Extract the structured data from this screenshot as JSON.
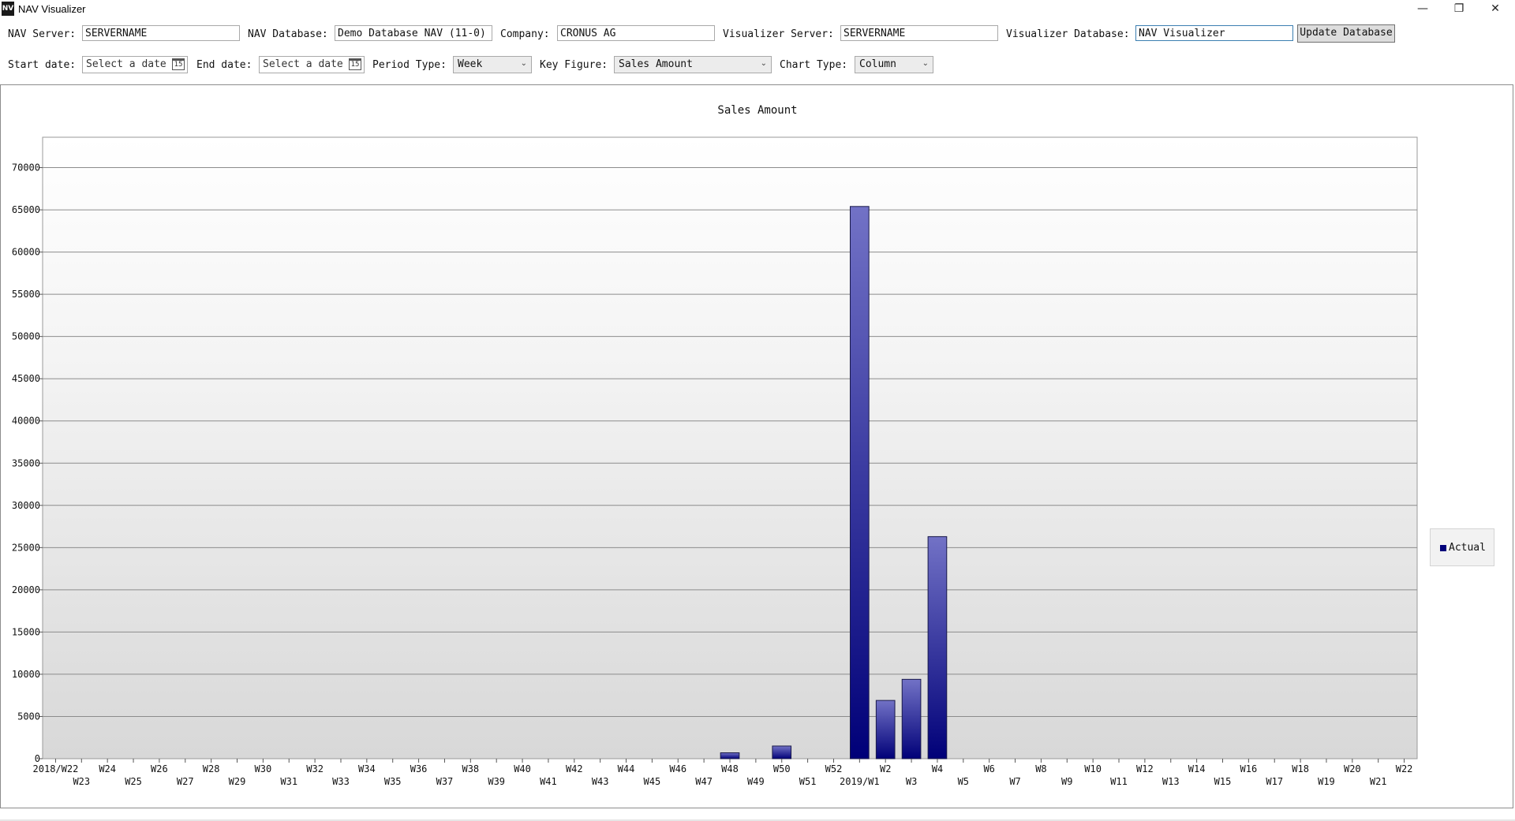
{
  "window": {
    "title": "NAV Visualizer",
    "icon_text": "NV",
    "controls": [
      "minimize-icon",
      "restore-icon",
      "close-icon"
    ],
    "minimize_glyph": "—",
    "restore_glyph": "❐",
    "close_glyph": "✕"
  },
  "connection": {
    "nav_server_label": "NAV Server:",
    "nav_server_value": "SERVERNAME",
    "nav_database_label": "NAV Database:",
    "nav_database_value": "Demo Database NAV (11-0)",
    "company_label": "Company:",
    "company_value": "CRONUS AG",
    "visualizer_server_label": "Visualizer Server:",
    "visualizer_server_value": "SERVERNAME",
    "visualizer_database_label": "Visualizer Database:",
    "visualizer_database_value": "NAV Visualizer",
    "update_button": "Update Database"
  },
  "filters": {
    "start_date_label": "Start date:",
    "start_date_placeholder": "Select a date",
    "end_date_label": "End date:",
    "end_date_placeholder": "Select a date",
    "calendar_glyph": "15",
    "period_type_label": "Period Type:",
    "period_type_value": "Week",
    "key_figure_label": "Key Figure:",
    "key_figure_value": "Sales Amount",
    "chart_type_label": "Chart Type:",
    "chart_type_value": "Column",
    "dropdown_glyph": "⌄"
  },
  "chart_data": {
    "type": "bar",
    "title": "Sales Amount",
    "xlabel": "",
    "ylabel": "",
    "ylim": [
      0,
      73600
    ],
    "yticks": [
      0,
      5000,
      10000,
      15000,
      20000,
      25000,
      30000,
      35000,
      40000,
      45000,
      50000,
      55000,
      60000,
      65000,
      70000
    ],
    "grid": true,
    "legend": "right",
    "bar_color": "#1a1a8c",
    "categories": [
      "2018/W22",
      "W23",
      "W24",
      "W25",
      "W26",
      "W27",
      "W28",
      "W29",
      "W30",
      "W31",
      "W32",
      "W33",
      "W34",
      "W35",
      "W36",
      "W37",
      "W38",
      "W39",
      "W40",
      "W41",
      "W42",
      "W43",
      "W44",
      "W45",
      "W46",
      "W47",
      "W48",
      "W49",
      "W50",
      "W51",
      "W52",
      "2019/W1",
      "W2",
      "W3",
      "W4",
      "W5",
      "W6",
      "W7",
      "W8",
      "W9",
      "W10",
      "W11",
      "W12",
      "W13",
      "W14",
      "W15",
      "W16",
      "W17",
      "W18",
      "W19",
      "W20",
      "W21",
      "W22"
    ],
    "series": [
      {
        "name": "Actual",
        "values": [
          0,
          0,
          0,
          0,
          0,
          0,
          0,
          0,
          0,
          0,
          0,
          0,
          0,
          0,
          0,
          0,
          0,
          0,
          0,
          0,
          0,
          0,
          0,
          0,
          0,
          0,
          700,
          0,
          1500,
          0,
          0,
          65400,
          6900,
          9400,
          26300,
          0,
          0,
          0,
          0,
          0,
          0,
          0,
          0,
          0,
          0,
          0,
          0,
          0,
          0,
          0,
          0,
          0,
          0
        ]
      }
    ]
  }
}
